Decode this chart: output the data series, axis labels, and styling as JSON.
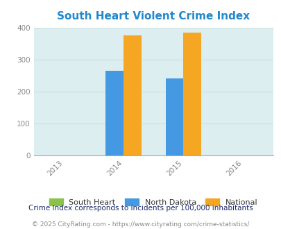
{
  "title": "South Heart Violent Crime Index",
  "years": [
    2013,
    2014,
    2015,
    2016
  ],
  "bar_groups": {
    "2014": {
      "South Heart": 0,
      "North Dakota": 265,
      "National": 376
    },
    "2015": {
      "South Heart": 0,
      "North Dakota": 241,
      "National": 383
    }
  },
  "series_colors": {
    "South Heart": "#8bc34a",
    "North Dakota": "#4599e3",
    "National": "#f5a623"
  },
  "xlim": [
    2012.5,
    2016.5
  ],
  "ylim": [
    0,
    400
  ],
  "yticks": [
    0,
    100,
    200,
    300,
    400
  ],
  "xticks": [
    2013,
    2014,
    2015,
    2016
  ],
  "figure_bg_color": "#ffffff",
  "plot_bg_color": "#ddeef0",
  "title_color": "#2288cc",
  "title_fontsize": 11,
  "legend_labels": [
    "South Heart",
    "North Dakota",
    "National"
  ],
  "footnote1": "Crime Index corresponds to incidents per 100,000 inhabitants",
  "footnote2": "© 2025 CityRating.com - https://www.cityrating.com/crime-statistics/",
  "bar_width": 0.3,
  "grid_color": "#ccdddd",
  "axis_label_color": "#888888",
  "footnote1_color": "#1a2a6c",
  "footnote2_color": "#888888"
}
